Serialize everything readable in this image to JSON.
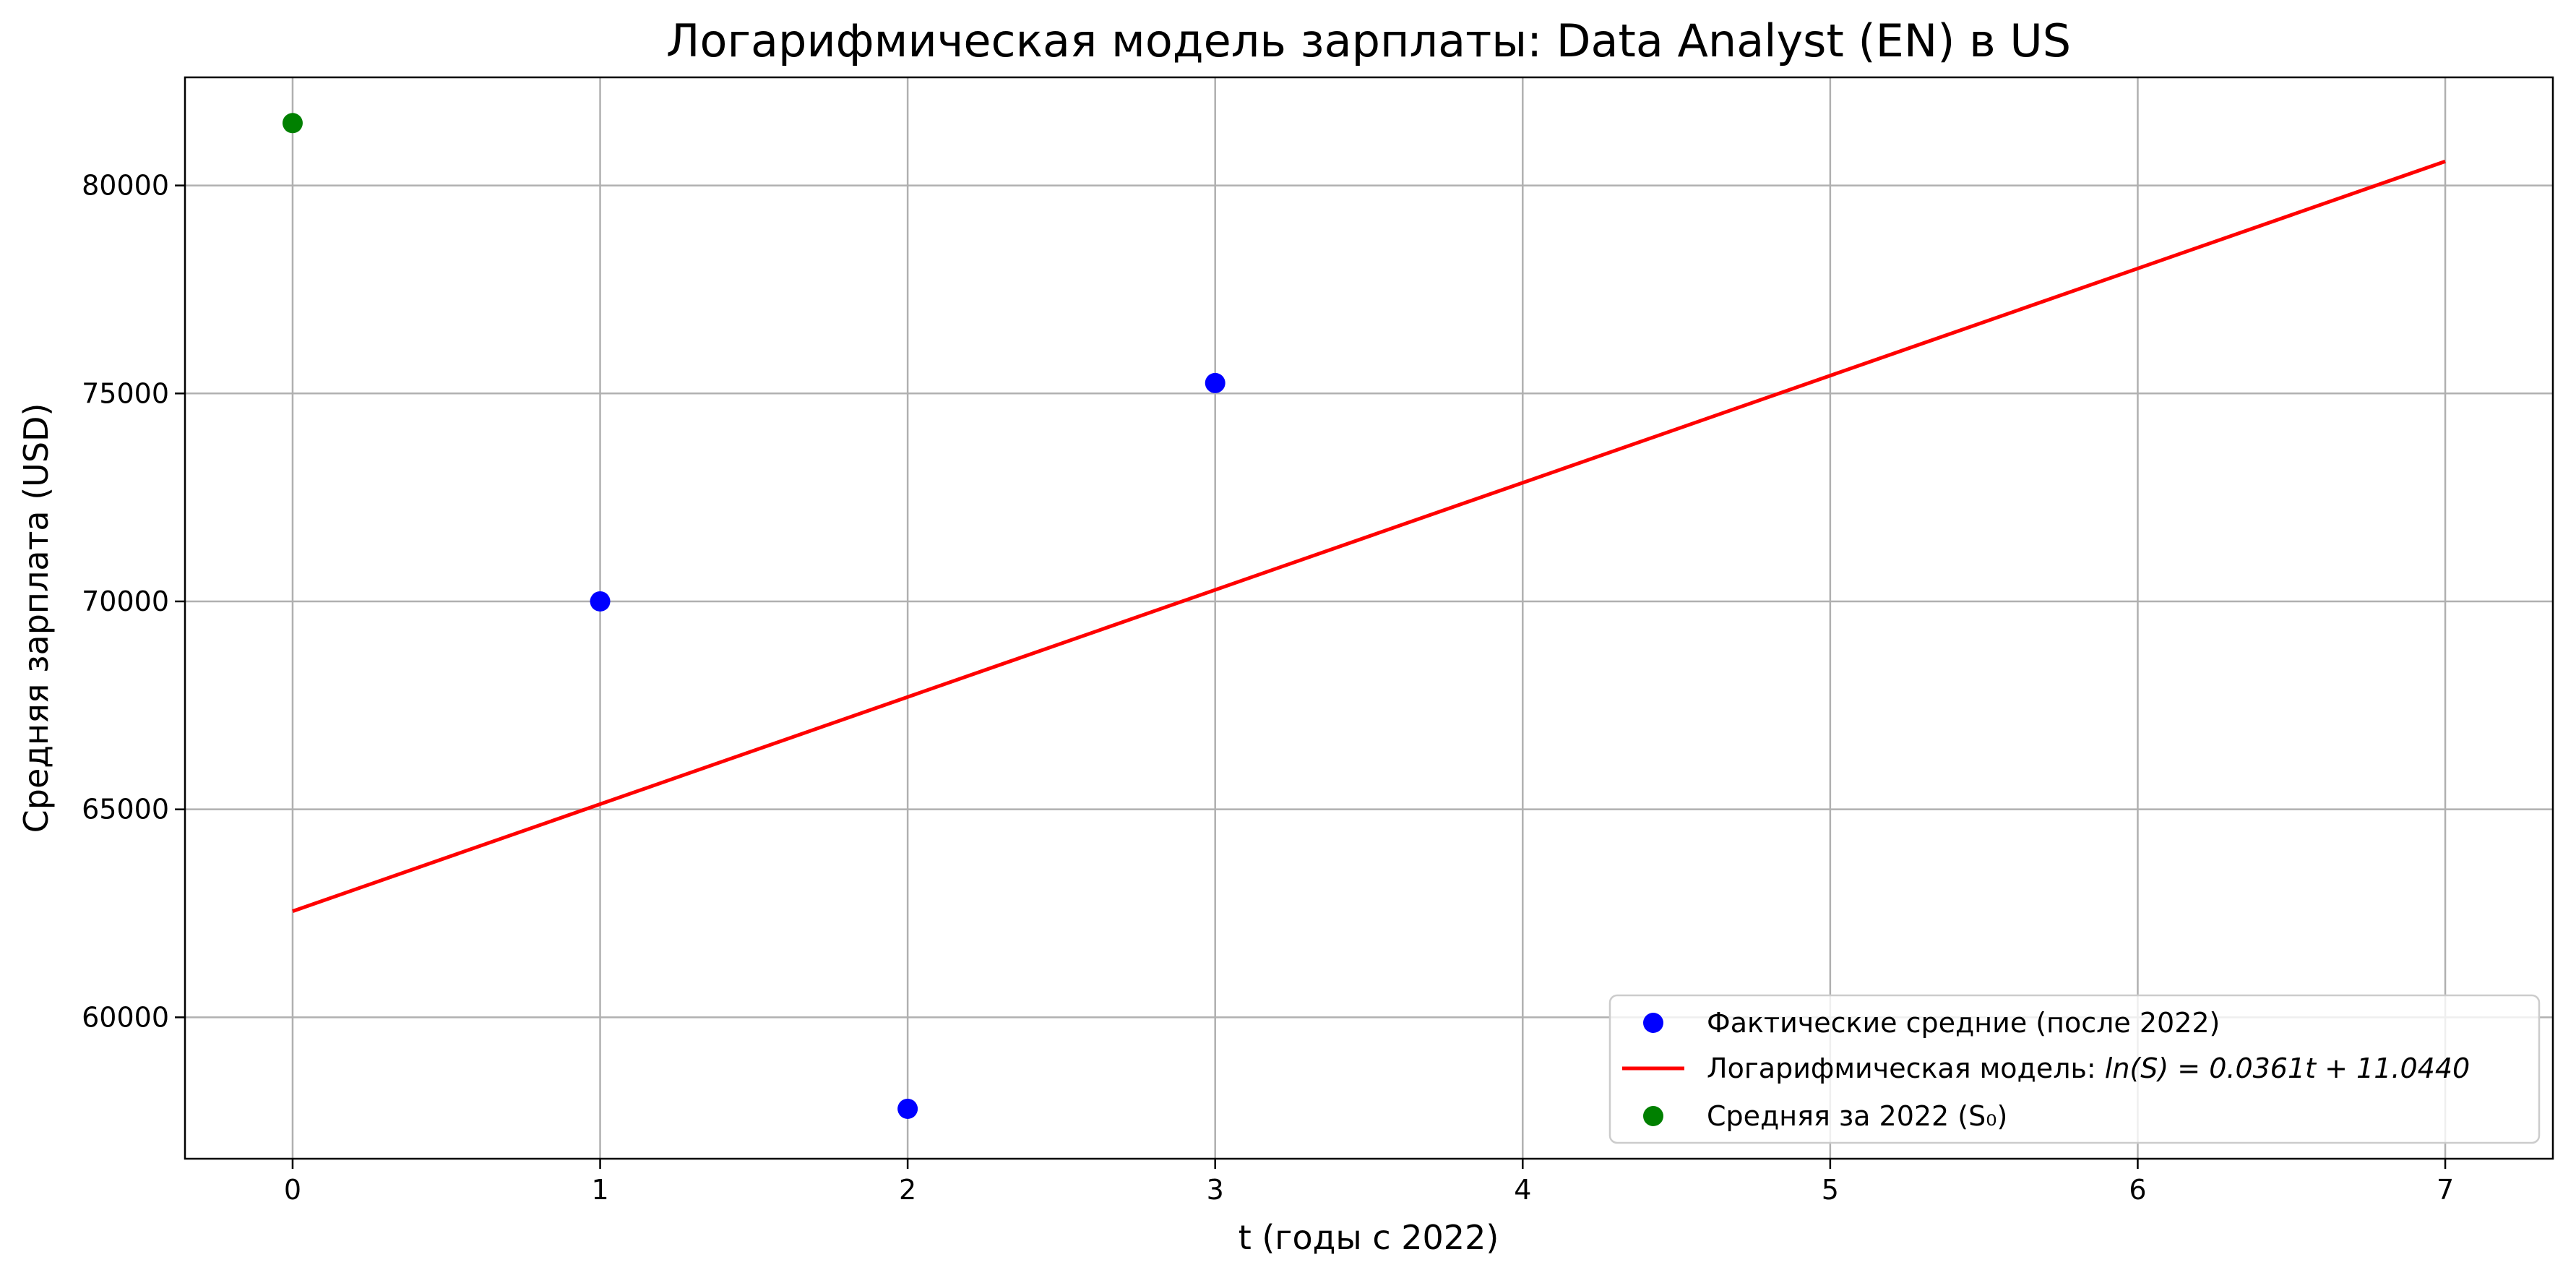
{
  "chart_data": {
    "type": "scatter",
    "title": "Логарифмическая модель зарплаты: Data Analyst (EN) в US",
    "xlabel": "t (годы с 2022)",
    "ylabel": "Средняя зарплата (USD)",
    "xlim": [
      -0.35,
      7.35
    ],
    "ylim": [
      56600,
      82600
    ],
    "xticks": [
      0,
      1,
      2,
      3,
      4,
      5,
      6,
      7
    ],
    "yticks": [
      60000,
      65000,
      70000,
      75000,
      80000
    ],
    "grid": true,
    "legend_position": "bottom-right",
    "series": [
      {
        "name": "Фактические средние (после 2022)",
        "kind": "scatter",
        "color": "#0000ff",
        "x": [
          1,
          2,
          3
        ],
        "y": [
          70000,
          57800,
          75250
        ]
      },
      {
        "name_prefix": "Логарифмическая модель: ",
        "name_formula": "ln(S) = 0.0361t + 11.0440",
        "kind": "line",
        "color": "#ff0000",
        "x": [
          0,
          7
        ],
        "y": [
          62550,
          80580
        ]
      },
      {
        "name": "Средняя за 2022 (S₀)",
        "kind": "scatter",
        "color": "#008000",
        "x": [
          0
        ],
        "y": [
          81500
        ]
      }
    ]
  }
}
